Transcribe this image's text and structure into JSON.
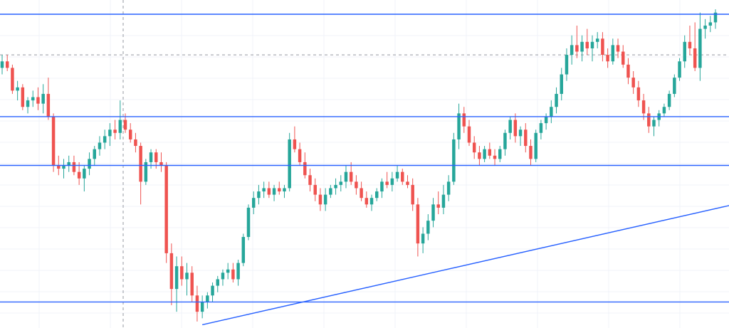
{
  "colors": {
    "up": "#26a69a",
    "down": "#ef5350",
    "level_line": "#2962ff",
    "trend_line": "#2962ff",
    "grid": "#f0f3fa",
    "crosshair": "#9598a1",
    "handle_fill": "#ffffff"
  },
  "chart_data": {
    "type": "candlestick",
    "grid": true,
    "crosshair": {
      "visible": true
    },
    "ylim": [
      0,
      100
    ],
    "levels": [
      96.5,
      65,
      50,
      8
    ],
    "reference_level": 84,
    "trendline": {
      "start": [
        39,
        1
      ],
      "end": [
        179,
        51
      ]
    },
    "selection_handle": [
      160,
      96.5
    ],
    "candles": [
      {
        "o": 80,
        "h": 84,
        "l": 78,
        "c": 82
      },
      {
        "o": 82,
        "h": 84,
        "l": 79,
        "c": 80
      },
      {
        "o": 80,
        "h": 81,
        "l": 72,
        "c": 73
      },
      {
        "o": 73,
        "h": 76,
        "l": 70,
        "c": 74
      },
      {
        "o": 74,
        "h": 75,
        "l": 67,
        "c": 68
      },
      {
        "o": 68,
        "h": 71,
        "l": 66,
        "c": 70
      },
      {
        "o": 70,
        "h": 73,
        "l": 68,
        "c": 71
      },
      {
        "o": 71,
        "h": 74,
        "l": 67,
        "c": 69
      },
      {
        "o": 69,
        "h": 75,
        "l": 66,
        "c": 72
      },
      {
        "o": 72,
        "h": 77,
        "l": 64,
        "c": 65
      },
      {
        "o": 65,
        "h": 66,
        "l": 48,
        "c": 50
      },
      {
        "o": 50,
        "h": 53,
        "l": 47,
        "c": 49
      },
      {
        "o": 49,
        "h": 52,
        "l": 46,
        "c": 50
      },
      {
        "o": 50,
        "h": 53,
        "l": 48,
        "c": 51
      },
      {
        "o": 51,
        "h": 53,
        "l": 47,
        "c": 48
      },
      {
        "o": 48,
        "h": 51,
        "l": 44,
        "c": 46
      },
      {
        "o": 46,
        "h": 50,
        "l": 42,
        "c": 49
      },
      {
        "o": 49,
        "h": 54,
        "l": 47,
        "c": 52
      },
      {
        "o": 52,
        "h": 56,
        "l": 50,
        "c": 55
      },
      {
        "o": 55,
        "h": 59,
        "l": 53,
        "c": 57
      },
      {
        "o": 57,
        "h": 61,
        "l": 55,
        "c": 59
      },
      {
        "o": 59,
        "h": 63,
        "l": 56,
        "c": 61
      },
      {
        "o": 61,
        "h": 64,
        "l": 58,
        "c": 60
      },
      {
        "o": 60,
        "h": 70,
        "l": 58,
        "c": 64
      },
      {
        "o": 64,
        "h": 66,
        "l": 60,
        "c": 61
      },
      {
        "o": 61,
        "h": 63,
        "l": 57,
        "c": 58
      },
      {
        "o": 58,
        "h": 60,
        "l": 54,
        "c": 56
      },
      {
        "o": 56,
        "h": 57,
        "l": 38,
        "c": 45
      },
      {
        "o": 45,
        "h": 52,
        "l": 44,
        "c": 51
      },
      {
        "o": 51,
        "h": 55,
        "l": 49,
        "c": 54
      },
      {
        "o": 54,
        "h": 55,
        "l": 49,
        "c": 51
      },
      {
        "o": 51,
        "h": 54,
        "l": 48,
        "c": 50
      },
      {
        "o": 50,
        "h": 51,
        "l": 20,
        "c": 23
      },
      {
        "o": 23,
        "h": 26,
        "l": 7,
        "c": 12
      },
      {
        "o": 12,
        "h": 22,
        "l": 5,
        "c": 19
      },
      {
        "o": 19,
        "h": 22,
        "l": 13,
        "c": 15
      },
      {
        "o": 15,
        "h": 20,
        "l": 10,
        "c": 17
      },
      {
        "o": 17,
        "h": 19,
        "l": 8,
        "c": 10
      },
      {
        "o": 10,
        "h": 13,
        "l": 2,
        "c": 5
      },
      {
        "o": 5,
        "h": 10,
        "l": 3,
        "c": 8
      },
      {
        "o": 8,
        "h": 11,
        "l": 6,
        "c": 10
      },
      {
        "o": 10,
        "h": 14,
        "l": 8,
        "c": 13
      },
      {
        "o": 13,
        "h": 16,
        "l": 11,
        "c": 15
      },
      {
        "o": 15,
        "h": 18,
        "l": 13,
        "c": 17
      },
      {
        "o": 17,
        "h": 20,
        "l": 15,
        "c": 18
      },
      {
        "o": 18,
        "h": 20,
        "l": 14,
        "c": 15
      },
      {
        "o": 15,
        "h": 21,
        "l": 13,
        "c": 20
      },
      {
        "o": 20,
        "h": 29,
        "l": 19,
        "c": 28
      },
      {
        "o": 28,
        "h": 38,
        "l": 27,
        "c": 37
      },
      {
        "o": 37,
        "h": 42,
        "l": 35,
        "c": 40
      },
      {
        "o": 40,
        "h": 44,
        "l": 38,
        "c": 42
      },
      {
        "o": 42,
        "h": 45,
        "l": 40,
        "c": 43
      },
      {
        "o": 43,
        "h": 45,
        "l": 40,
        "c": 41
      },
      {
        "o": 41,
        "h": 44,
        "l": 39,
        "c": 43
      },
      {
        "o": 43,
        "h": 45,
        "l": 41,
        "c": 42
      },
      {
        "o": 42,
        "h": 44,
        "l": 40,
        "c": 43
      },
      {
        "o": 43,
        "h": 60,
        "l": 42,
        "c": 58
      },
      {
        "o": 58,
        "h": 62,
        "l": 54,
        "c": 55
      },
      {
        "o": 55,
        "h": 57,
        "l": 50,
        "c": 51
      },
      {
        "o": 51,
        "h": 54,
        "l": 46,
        "c": 47
      },
      {
        "o": 47,
        "h": 49,
        "l": 42,
        "c": 44
      },
      {
        "o": 44,
        "h": 46,
        "l": 39,
        "c": 41
      },
      {
        "o": 41,
        "h": 43,
        "l": 36,
        "c": 38
      },
      {
        "o": 38,
        "h": 43,
        "l": 36,
        "c": 41
      },
      {
        "o": 41,
        "h": 44,
        "l": 40,
        "c": 43
      },
      {
        "o": 43,
        "h": 46,
        "l": 41,
        "c": 44
      },
      {
        "o": 44,
        "h": 47,
        "l": 42,
        "c": 45
      },
      {
        "o": 45,
        "h": 50,
        "l": 43,
        "c": 48
      },
      {
        "o": 48,
        "h": 51,
        "l": 44,
        "c": 45
      },
      {
        "o": 45,
        "h": 47,
        "l": 41,
        "c": 43
      },
      {
        "o": 43,
        "h": 45,
        "l": 39,
        "c": 40
      },
      {
        "o": 40,
        "h": 42,
        "l": 37,
        "c": 38
      },
      {
        "o": 38,
        "h": 41,
        "l": 36,
        "c": 40
      },
      {
        "o": 40,
        "h": 43,
        "l": 39,
        "c": 42
      },
      {
        "o": 42,
        "h": 46,
        "l": 40,
        "c": 45
      },
      {
        "o": 45,
        "h": 48,
        "l": 43,
        "c": 44
      },
      {
        "o": 44,
        "h": 48,
        "l": 42,
        "c": 46
      },
      {
        "o": 46,
        "h": 50,
        "l": 45,
        "c": 48
      },
      {
        "o": 48,
        "h": 49,
        "l": 44,
        "c": 45
      },
      {
        "o": 45,
        "h": 47,
        "l": 43,
        "c": 44
      },
      {
        "o": 44,
        "h": 46,
        "l": 36,
        "c": 38
      },
      {
        "o": 38,
        "h": 40,
        "l": 22,
        "c": 26
      },
      {
        "o": 26,
        "h": 31,
        "l": 23,
        "c": 29
      },
      {
        "o": 29,
        "h": 35,
        "l": 27,
        "c": 33
      },
      {
        "o": 33,
        "h": 40,
        "l": 31,
        "c": 38
      },
      {
        "o": 38,
        "h": 42,
        "l": 35,
        "c": 37
      },
      {
        "o": 37,
        "h": 44,
        "l": 35,
        "c": 41
      },
      {
        "o": 41,
        "h": 47,
        "l": 39,
        "c": 45
      },
      {
        "o": 45,
        "h": 60,
        "l": 44,
        "c": 58
      },
      {
        "o": 58,
        "h": 69,
        "l": 55,
        "c": 66
      },
      {
        "o": 66,
        "h": 68,
        "l": 60,
        "c": 62
      },
      {
        "o": 62,
        "h": 64,
        "l": 56,
        "c": 57
      },
      {
        "o": 57,
        "h": 59,
        "l": 52,
        "c": 54
      },
      {
        "o": 54,
        "h": 56,
        "l": 50,
        "c": 52
      },
      {
        "o": 52,
        "h": 56,
        "l": 51,
        "c": 55
      },
      {
        "o": 55,
        "h": 57,
        "l": 52,
        "c": 53
      },
      {
        "o": 53,
        "h": 55,
        "l": 50,
        "c": 52
      },
      {
        "o": 52,
        "h": 56,
        "l": 51,
        "c": 55
      },
      {
        "o": 55,
        "h": 61,
        "l": 53,
        "c": 60
      },
      {
        "o": 60,
        "h": 65,
        "l": 58,
        "c": 64
      },
      {
        "o": 64,
        "h": 66,
        "l": 57,
        "c": 59
      },
      {
        "o": 59,
        "h": 62,
        "l": 56,
        "c": 61
      },
      {
        "o": 61,
        "h": 63,
        "l": 54,
        "c": 56
      },
      {
        "o": 56,
        "h": 58,
        "l": 50,
        "c": 52
      },
      {
        "o": 52,
        "h": 61,
        "l": 51,
        "c": 60
      },
      {
        "o": 60,
        "h": 64,
        "l": 58,
        "c": 63
      },
      {
        "o": 63,
        "h": 66,
        "l": 61,
        "c": 65
      },
      {
        "o": 65,
        "h": 70,
        "l": 63,
        "c": 68
      },
      {
        "o": 68,
        "h": 74,
        "l": 66,
        "c": 72
      },
      {
        "o": 72,
        "h": 80,
        "l": 70,
        "c": 78
      },
      {
        "o": 78,
        "h": 86,
        "l": 76,
        "c": 84
      },
      {
        "o": 84,
        "h": 90,
        "l": 81,
        "c": 87
      },
      {
        "o": 87,
        "h": 93,
        "l": 83,
        "c": 85
      },
      {
        "o": 85,
        "h": 90,
        "l": 82,
        "c": 88
      },
      {
        "o": 88,
        "h": 92,
        "l": 84,
        "c": 86
      },
      {
        "o": 86,
        "h": 90,
        "l": 82,
        "c": 88
      },
      {
        "o": 88,
        "h": 91,
        "l": 86,
        "c": 89
      },
      {
        "o": 89,
        "h": 91,
        "l": 82,
        "c": 84
      },
      {
        "o": 84,
        "h": 86,
        "l": 80,
        "c": 82
      },
      {
        "o": 82,
        "h": 89,
        "l": 81,
        "c": 87
      },
      {
        "o": 87,
        "h": 89,
        "l": 83,
        "c": 85
      },
      {
        "o": 85,
        "h": 87,
        "l": 80,
        "c": 81
      },
      {
        "o": 81,
        "h": 83,
        "l": 75,
        "c": 77
      },
      {
        "o": 77,
        "h": 79,
        "l": 72,
        "c": 74
      },
      {
        "o": 74,
        "h": 76,
        "l": 68,
        "c": 70
      },
      {
        "o": 70,
        "h": 72,
        "l": 64,
        "c": 66
      },
      {
        "o": 66,
        "h": 68,
        "l": 60,
        "c": 62
      },
      {
        "o": 62,
        "h": 65,
        "l": 59,
        "c": 64
      },
      {
        "o": 64,
        "h": 67,
        "l": 62,
        "c": 66
      },
      {
        "o": 66,
        "h": 69,
        "l": 65,
        "c": 68
      },
      {
        "o": 68,
        "h": 73,
        "l": 67,
        "c": 72
      },
      {
        "o": 72,
        "h": 78,
        "l": 71,
        "c": 77
      },
      {
        "o": 77,
        "h": 83,
        "l": 76,
        "c": 82
      },
      {
        "o": 82,
        "h": 90,
        "l": 80,
        "c": 88
      },
      {
        "o": 88,
        "h": 93,
        "l": 84,
        "c": 86
      },
      {
        "o": 86,
        "h": 94,
        "l": 79,
        "c": 80
      },
      {
        "o": 80,
        "h": 97,
        "l": 76,
        "c": 92
      },
      {
        "o": 92,
        "h": 95,
        "l": 89,
        "c": 93
      },
      {
        "o": 93,
        "h": 96,
        "l": 91,
        "c": 94
      },
      {
        "o": 94,
        "h": 98,
        "l": 92,
        "c": 97
      }
    ]
  }
}
